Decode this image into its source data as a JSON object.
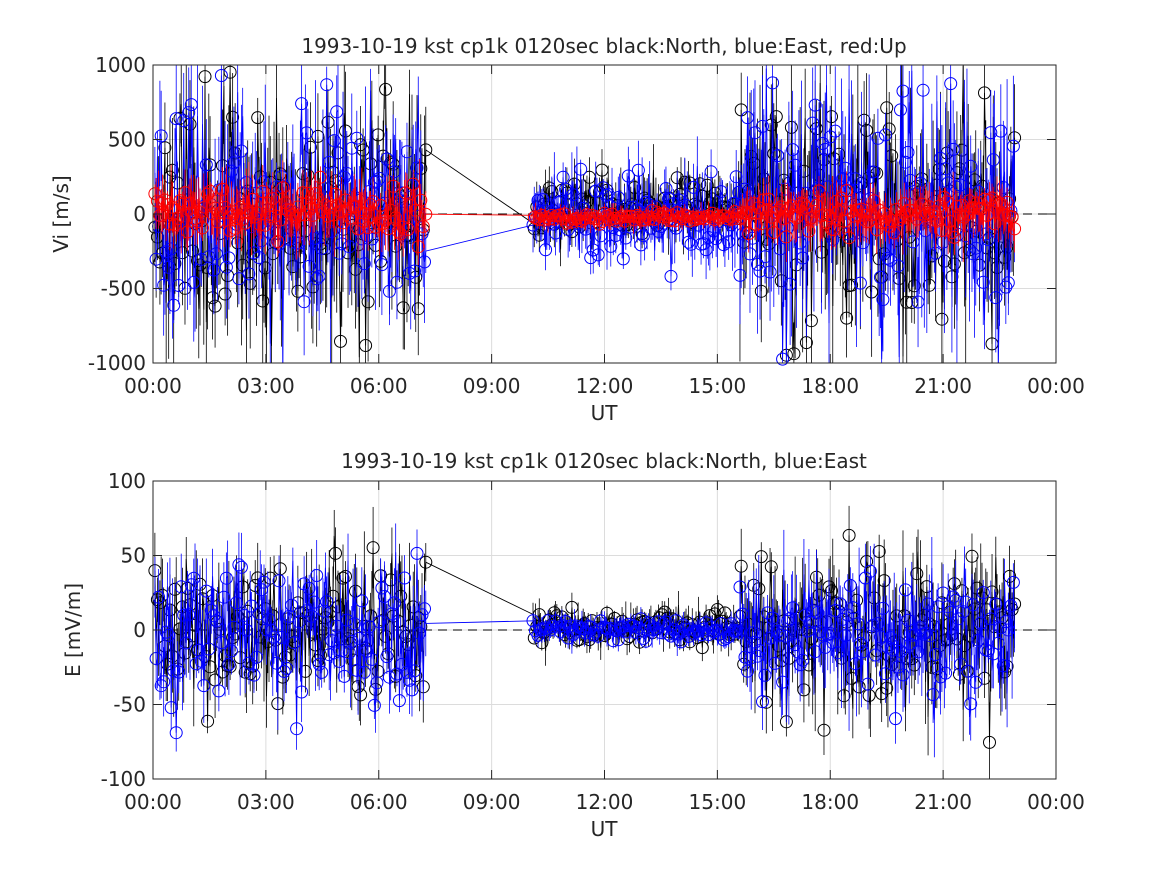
{
  "chart_data": [
    {
      "type": "scatter",
      "title": "1993-10-19 kst cp1k 0120sec black:North, blue:East, red:Up",
      "xlabel": "UT",
      "ylabel": "Vi [m/s]",
      "xlim": [
        0,
        24
      ],
      "ylim": [
        -1000,
        1000
      ],
      "x_ticks": [
        0,
        3,
        6,
        9,
        12,
        15,
        18,
        21,
        24
      ],
      "x_tick_labels": [
        "00:00",
        "03:00",
        "06:00",
        "09:00",
        "12:00",
        "15:00",
        "18:00",
        "21:00",
        "00:00"
      ],
      "y_ticks": [
        -1000,
        -500,
        0,
        500,
        1000
      ],
      "y_tick_labels": [
        "-1000",
        "-500",
        "0",
        "500",
        "1000"
      ],
      "grid": true,
      "zero_line": "dashed",
      "marker": "open-circle",
      "series": [
        {
          "name": "North",
          "color": "#000000",
          "segments": [
            {
              "start": 0.05,
              "end": 7.25,
              "mean": 20,
              "noise": 520,
              "err": 350,
              "seed": 11
            },
            {
              "start": 10.1,
              "end": 15.6,
              "mean": 40,
              "noise": 120,
              "err": 140,
              "seed": 12
            },
            {
              "start": 15.6,
              "end": 22.9,
              "mean": 0,
              "noise": 500,
              "err": 380,
              "seed": 13
            }
          ]
        },
        {
          "name": "East",
          "color": "#0000ff",
          "segments": [
            {
              "start": 0.05,
              "end": 7.25,
              "mean": 30,
              "noise": 480,
              "err": 330,
              "seed": 21
            },
            {
              "start": 10.1,
              "end": 15.6,
              "mean": -40,
              "noise": 180,
              "err": 160,
              "seed": 22
            },
            {
              "start": 15.6,
              "end": 22.9,
              "mean": 20,
              "noise": 520,
              "err": 380,
              "seed": 23
            }
          ]
        },
        {
          "name": "Up",
          "color": "#ff0000",
          "segments": [
            {
              "start": 0.05,
              "end": 7.25,
              "mean": 20,
              "noise": 110,
              "err": 160,
              "seed": 31
            },
            {
              "start": 10.1,
              "end": 15.6,
              "mean": -20,
              "noise": 22,
              "err": 60,
              "seed": 32
            },
            {
              "start": 15.6,
              "end": 22.9,
              "mean": 0,
              "noise": 85,
              "err": 140,
              "seed": 33
            }
          ]
        }
      ]
    },
    {
      "type": "scatter",
      "title": "1993-10-19 kst cp1k 0120sec black:North, blue:East",
      "xlabel": "UT",
      "ylabel": "E [mV/m]",
      "xlim": [
        0,
        24
      ],
      "ylim": [
        -100,
        100
      ],
      "x_ticks": [
        0,
        3,
        6,
        9,
        12,
        15,
        18,
        21,
        24
      ],
      "x_tick_labels": [
        "00:00",
        "03:00",
        "06:00",
        "09:00",
        "12:00",
        "15:00",
        "18:00",
        "21:00",
        "00:00"
      ],
      "y_ticks": [
        -100,
        -50,
        0,
        50,
        100
      ],
      "y_tick_labels": [
        "-100",
        "-50",
        "0",
        "50",
        "100"
      ],
      "grid": true,
      "zero_line": "dashed",
      "marker": "open-circle",
      "series": [
        {
          "name": "North",
          "color": "#000000",
          "segments": [
            {
              "start": 0.05,
              "end": 7.25,
              "mean": 0,
              "noise": 32,
              "err": 22,
              "seed": 41
            },
            {
              "start": 10.1,
              "end": 15.6,
              "mean": 2,
              "noise": 8,
              "err": 9,
              "seed": 42
            },
            {
              "start": 15.6,
              "end": 22.9,
              "mean": 0,
              "noise": 36,
              "err": 24,
              "seed": 43
            }
          ]
        },
        {
          "name": "East",
          "color": "#0000ff",
          "segments": [
            {
              "start": 0.05,
              "end": 7.25,
              "mean": -2,
              "noise": 30,
              "err": 20,
              "seed": 51
            },
            {
              "start": 10.1,
              "end": 15.6,
              "mean": 0,
              "noise": 5,
              "err": 7,
              "seed": 52
            },
            {
              "start": 15.6,
              "end": 22.9,
              "mean": -3,
              "noise": 30,
              "err": 22,
              "seed": 53
            }
          ]
        }
      ]
    }
  ]
}
